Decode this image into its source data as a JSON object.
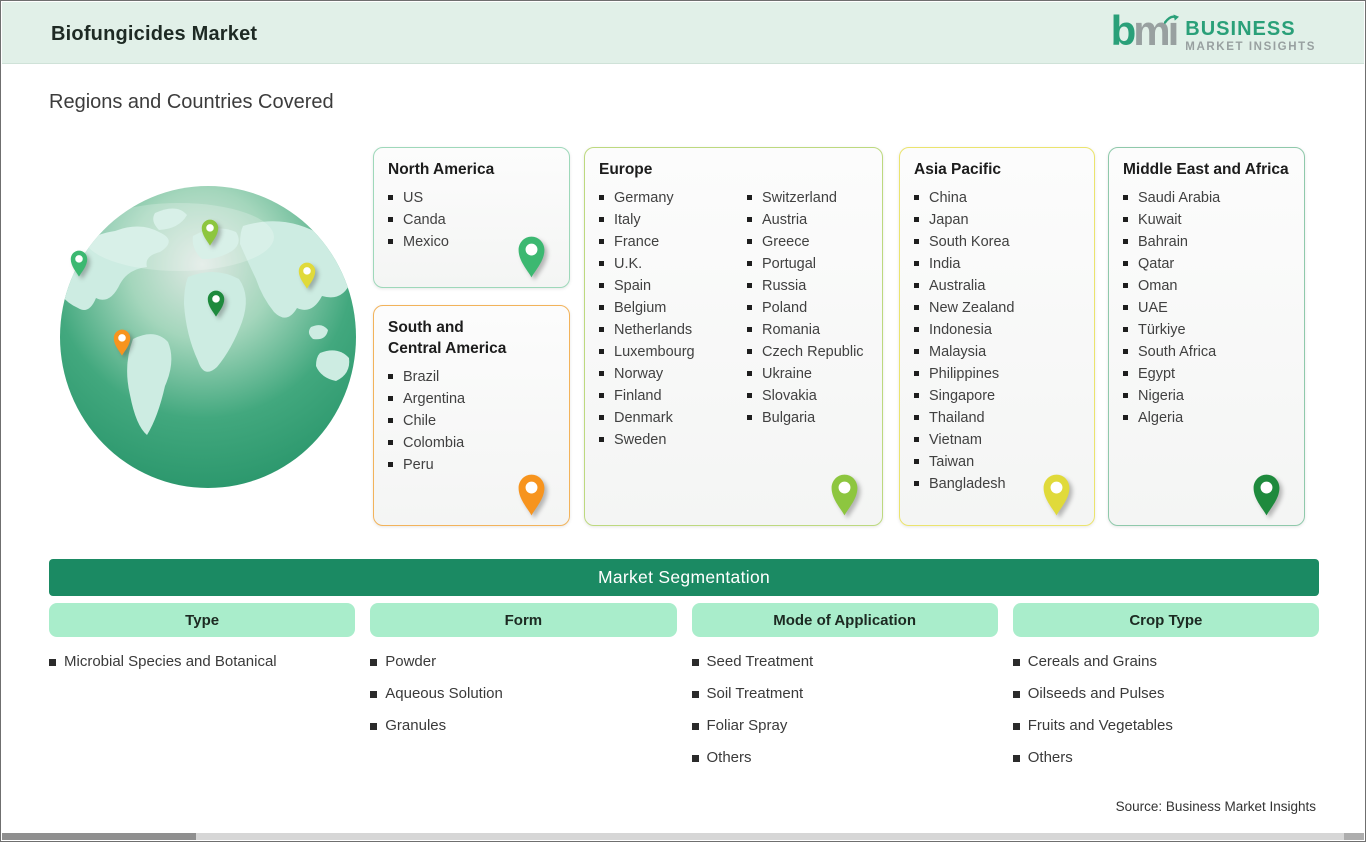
{
  "header": {
    "title": "Biofungicides Market",
    "logo": {
      "mark_b": "b",
      "mark_mi": "mı",
      "name_line1": "BUSINESS",
      "name_line2": "MARKET INSIGHTS"
    }
  },
  "page": {
    "heading": "Regions and Countries Covered",
    "source": "Source: Business Market Insights"
  },
  "regions": {
    "north_america": {
      "title": "North America",
      "countries": [
        "US",
        "Canda",
        "Mexico"
      ]
    },
    "south_central_america": {
      "title": "South and\nCentral America",
      "countries": [
        "Brazil",
        "Argentina",
        "Chile",
        "Colombia",
        "Peru"
      ]
    },
    "europe": {
      "title": "Europe",
      "countries_col1": [
        "Germany",
        "Italy",
        "France",
        "U.K.",
        "Spain",
        "Belgium",
        "Netherlands",
        "Luxembourg",
        "Norway",
        "Finland",
        "Denmark",
        "Sweden"
      ],
      "countries_col2": [
        "Switzerland",
        "Austria",
        "Greece",
        "Portugal",
        "Russia",
        "Poland",
        "Romania",
        "Czech Republic",
        "Ukraine",
        "Slovakia",
        "Bulgaria"
      ]
    },
    "asia_pacific": {
      "title": "Asia Pacific",
      "countries": [
        "China",
        "Japan",
        "South Korea",
        "India",
        "Australia",
        "New Zealand",
        "Indonesia",
        "Malaysia",
        "Philippines",
        "Singapore",
        "Thailand",
        "Vietnam",
        "Taiwan",
        "Bangladesh"
      ]
    },
    "middle_east_africa": {
      "title": "Middle East and Africa",
      "countries": [
        "Saudi Arabia",
        "Kuwait",
        "Bahrain",
        "Qatar",
        "Oman",
        "UAE",
        "Türkiye",
        "South Africa",
        "Egypt",
        "Nigeria",
        "Algeria"
      ]
    }
  },
  "segmentation": {
    "title": "Market Segmentation",
    "columns": [
      {
        "header": "Type",
        "items": [
          "Microbial Species and Botanical"
        ]
      },
      {
        "header": "Form",
        "items": [
          "Powder",
          "Aqueous Solution",
          "Granules"
        ]
      },
      {
        "header": "Mode of Application",
        "items": [
          "Seed Treatment",
          "Soil Treatment",
          "Foliar Spray",
          "Others"
        ]
      },
      {
        "header": "Crop Type",
        "items": [
          "Cereals and Grains",
          "Oilseeds and Pulses",
          "Fruits and Vegetables",
          "Others"
        ]
      }
    ]
  },
  "colors": {
    "topbar_bg": "#e1f0e8",
    "title_text": "#1e2a24",
    "heading_text": "#3c3c3c",
    "card_text": "#414141",
    "border_na": "#9ed8ba",
    "border_sca": "#f2b35b",
    "border_eu": "#bdd97f",
    "border_ap": "#ebe46e",
    "border_mea": "#8fc9ab",
    "pin_na": "#3cb871",
    "pin_sca": "#f7941e",
    "pin_eu": "#8dc63f",
    "pin_ap": "#e0da3a",
    "pin_mea": "#1e8a3d",
    "seg_bar": "#1b8a63",
    "pill_bg": "#a9edcb",
    "pill_text": "#1c2a22",
    "logo_green": "#2aa079",
    "logo_gray": "#98a0a0",
    "source_text": "#333333",
    "scroll_track": "#d6d6d6",
    "scroll_thumb": "#8f8f8f"
  }
}
